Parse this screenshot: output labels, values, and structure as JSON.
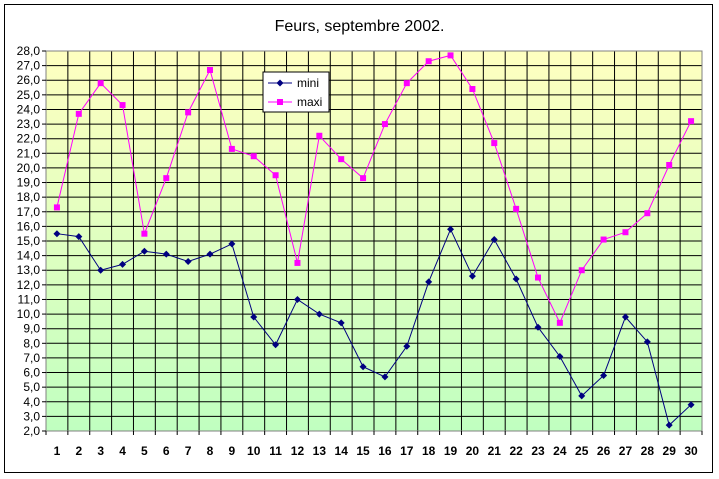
{
  "chart_data": {
    "type": "line",
    "title": "Feurs, septembre 2002.",
    "xlabel": "",
    "ylabel": "",
    "x": [
      1,
      2,
      3,
      4,
      5,
      6,
      7,
      8,
      9,
      10,
      11,
      12,
      13,
      14,
      15,
      16,
      17,
      18,
      19,
      20,
      21,
      22,
      23,
      24,
      25,
      26,
      27,
      28,
      29,
      30
    ],
    "ylim": [
      2.0,
      28.0
    ],
    "ytick_step": 1.0,
    "ytick_labels": [
      "2,0",
      "3,0",
      "4,0",
      "5,0",
      "6,0",
      "7,0",
      "8,0",
      "9,0",
      "10,0",
      "11,0",
      "12,0",
      "13,0",
      "14,0",
      "15,0",
      "16,0",
      "17,0",
      "18,0",
      "19,0",
      "20,0",
      "21,0",
      "22,0",
      "23,0",
      "24,0",
      "25,0",
      "26,0",
      "27,0",
      "28,0"
    ],
    "grid": true,
    "legend_position": "top-center",
    "plot_background": [
      "#ffffc0",
      "#c0ffc0"
    ],
    "series": [
      {
        "name": "mini",
        "color": "#000080",
        "marker": "diamond",
        "values": [
          15.5,
          15.3,
          13.0,
          13.4,
          14.3,
          14.1,
          13.6,
          14.1,
          14.8,
          9.8,
          7.9,
          11.0,
          10.0,
          9.4,
          6.4,
          5.7,
          7.8,
          12.2,
          15.8,
          12.6,
          15.1,
          12.4,
          9.1,
          7.1,
          4.4,
          5.8,
          9.8,
          8.1,
          2.4,
          3.8
        ]
      },
      {
        "name": "maxi",
        "color": "#ff00ff",
        "marker": "square",
        "values": [
          17.3,
          23.7,
          25.8,
          24.3,
          15.5,
          19.3,
          23.8,
          26.7,
          21.3,
          20.8,
          19.5,
          13.5,
          22.2,
          20.6,
          19.3,
          23.0,
          25.8,
          27.3,
          27.7,
          25.4,
          21.7,
          17.2,
          12.5,
          9.4,
          13.0,
          15.1,
          15.6,
          16.9,
          20.2,
          23.2
        ]
      }
    ]
  }
}
